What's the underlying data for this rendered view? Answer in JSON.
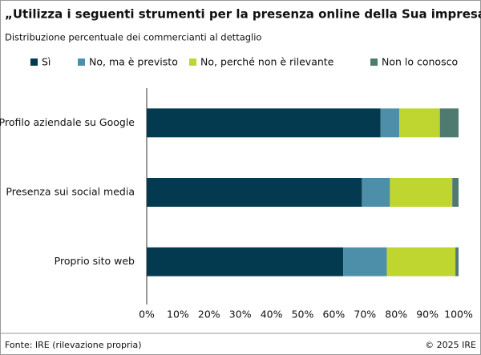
{
  "chart_data": {
    "type": "stacked-bar-horizontal",
    "title": "„Utilizza i seguenti strumenti per la presenza online della Sua impresa?\"",
    "subtitle": "Distribuzione percentuale dei commercianti al dettaglio",
    "categories": [
      "Profilo aziendale su Google",
      "Presenza sui social media",
      "Proprio sito web"
    ],
    "series": [
      {
        "name": "Sì",
        "color": "#033a50",
        "values": [
          75,
          69,
          63
        ]
      },
      {
        "name": "No, ma è previsto",
        "color": "#4d8fa8",
        "values": [
          6,
          9,
          14
        ]
      },
      {
        "name": "No, perché non è rilevante",
        "color": "#c0d630",
        "values": [
          13,
          20,
          22
        ]
      },
      {
        "name": "Non lo conosco",
        "color": "#4e7a6f",
        "values": [
          6,
          2,
          1
        ]
      }
    ],
    "xlim": [
      0,
      100
    ],
    "xticks": [
      {
        "value": 0,
        "label": "0%"
      },
      {
        "value": 10,
        "label": "10%"
      },
      {
        "value": 20,
        "label": "20%"
      },
      {
        "value": 30,
        "label": "30%"
      },
      {
        "value": 40,
        "label": "40%"
      },
      {
        "value": 50,
        "label": "50%"
      },
      {
        "value": 60,
        "label": "60%"
      },
      {
        "value": 70,
        "label": "70%"
      },
      {
        "value": 80,
        "label": "80%"
      },
      {
        "value": 90,
        "label": "90%"
      },
      {
        "value": 100,
        "label": "100%"
      }
    ],
    "source": "Fonte: IRE (rilevazione propria)",
    "copyright": "© 2025 IRE"
  }
}
